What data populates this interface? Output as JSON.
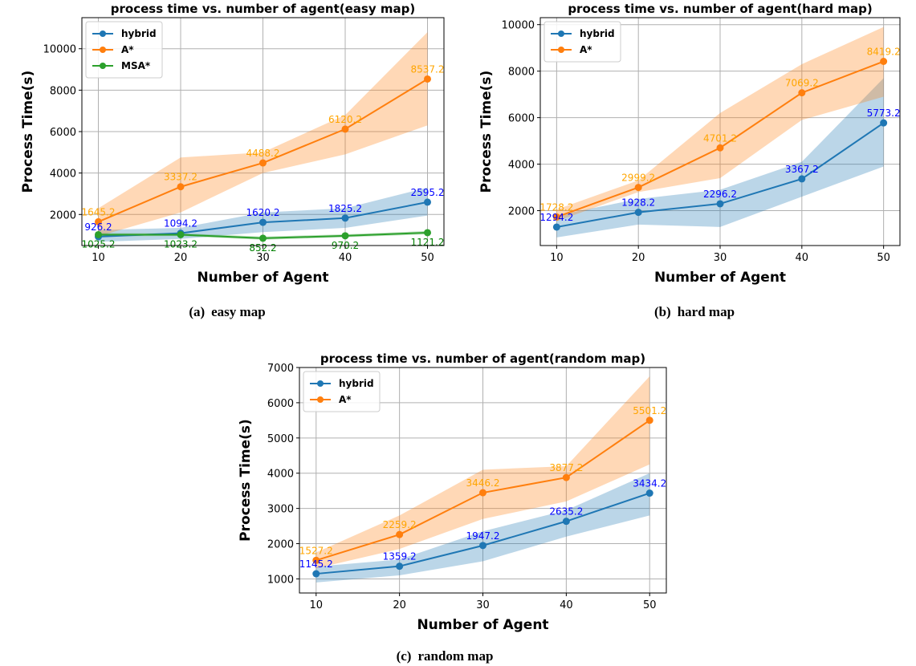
{
  "chart_data": [
    {
      "type": "line",
      "title": "process time vs. number of agent(easy map)",
      "xlabel": "Number of  Agent",
      "ylabel": "Process Time(s)",
      "caption_tag": "(a)",
      "caption": "easy map",
      "x": [
        10,
        20,
        30,
        40,
        50
      ],
      "xlim": [
        8,
        52
      ],
      "ylim": [
        500,
        11500
      ],
      "yticks": [
        2000,
        4000,
        6000,
        8000,
        10000
      ],
      "grid": true,
      "legend_position": "top-left",
      "series": [
        {
          "name": "hybrid",
          "color": "#1f77b4",
          "label_color": "#0000ff",
          "values": [
            926.2,
            1094.2,
            1620.2,
            1825.2,
            2595.2
          ],
          "labels": [
            "926.2",
            "1094.2",
            "1620.2",
            "1825.2",
            "2595.2"
          ],
          "lower": [
            680,
            820,
            1150,
            1350,
            1950
          ],
          "upper": [
            1250,
            1350,
            2100,
            2300,
            3300
          ]
        },
        {
          "name": "A*",
          "color": "#ff7f0e",
          "label_color": "#ffa500",
          "values": [
            1645.2,
            3337.2,
            4488.2,
            6120.2,
            8537.2
          ],
          "labels": [
            "1645.2",
            "3337.2",
            "4488.2",
            "6120.2",
            "8537.2"
          ],
          "lower": [
            950,
            2100,
            4000,
            4900,
            6300
          ],
          "upper": [
            2300,
            4750,
            5000,
            6800,
            10800
          ]
        },
        {
          "name": "MSA*",
          "color": "#2ca02c",
          "label_color": "#008000",
          "values": [
            1025.2,
            1023.2,
            852.2,
            970.2,
            1121.2
          ],
          "labels": [
            "1025.2",
            "1023.2",
            "852.2",
            "970.2",
            "1121.2"
          ],
          "lower": [
            950,
            960,
            780,
            900,
            1040
          ],
          "upper": [
            1100,
            1090,
            930,
            1040,
            1200
          ]
        }
      ]
    },
    {
      "type": "line",
      "title": "process time vs. number of agent(hard map)",
      "xlabel": "Number of  Agent",
      "ylabel": "Process Time(s)",
      "caption_tag": "(b)",
      "caption": "hard map",
      "x": [
        10,
        20,
        30,
        40,
        50
      ],
      "xlim": [
        8,
        52
      ],
      "ylim": [
        500,
        10300
      ],
      "yticks": [
        2000,
        4000,
        6000,
        8000,
        10000
      ],
      "grid": true,
      "legend_position": "top-left",
      "series": [
        {
          "name": "hybrid",
          "color": "#1f77b4",
          "label_color": "#0000ff",
          "values": [
            1294.2,
            1928.2,
            2296.2,
            3367.2,
            5773.2
          ],
          "labels": [
            "1294.2",
            "1928.2",
            "2296.2",
            "3367.2",
            "5773.2"
          ],
          "lower": [
            850,
            1400,
            1300,
            2600,
            3900
          ],
          "upper": [
            1800,
            2500,
            2900,
            4100,
            7700
          ]
        },
        {
          "name": "A*",
          "color": "#ff7f0e",
          "label_color": "#ffa500",
          "values": [
            1728.2,
            2999.2,
            4701.2,
            7069.2,
            8419.2
          ],
          "labels": [
            "1728.2",
            "2999.2",
            "4701.2",
            "7069.2",
            "8419.2"
          ],
          "lower": [
            1550,
            2800,
            3400,
            5900,
            6900
          ],
          "upper": [
            2050,
            3300,
            6200,
            8300,
            9900
          ]
        }
      ]
    },
    {
      "type": "line",
      "title": "process time vs. number of agent(random map)",
      "xlabel": "Number of  Agent",
      "ylabel": "Process Time(s)",
      "caption_tag": "(c)",
      "caption": "random map",
      "x": [
        10,
        20,
        30,
        40,
        50
      ],
      "xlim": [
        8,
        52
      ],
      "ylim": [
        600,
        7000
      ],
      "yticks": [
        1000,
        2000,
        3000,
        4000,
        5000,
        6000,
        7000
      ],
      "grid": true,
      "legend_position": "top-left",
      "series": [
        {
          "name": "hybrid",
          "color": "#1f77b4",
          "label_color": "#0000ff",
          "values": [
            1145.2,
            1359.2,
            1947.2,
            2635.2,
            3434.2
          ],
          "labels": [
            "1145.2",
            "1359.2",
            "1947.2",
            "2635.2",
            "3434.2"
          ],
          "lower": [
            900,
            1100,
            1500,
            2200,
            2800
          ],
          "upper": [
            1350,
            1550,
            2350,
            2950,
            4000
          ]
        },
        {
          "name": "A*",
          "color": "#ff7f0e",
          "label_color": "#ffa500",
          "values": [
            1527.2,
            2259.2,
            3446.2,
            3877.2,
            5501.2
          ],
          "labels": [
            "1527.2",
            "2259.2",
            "3446.2",
            "3877.2",
            "5501.2"
          ],
          "lower": [
            1300,
            1850,
            2700,
            3200,
            4250
          ],
          "upper": [
            1750,
            2800,
            4100,
            4200,
            6750
          ]
        }
      ]
    }
  ]
}
